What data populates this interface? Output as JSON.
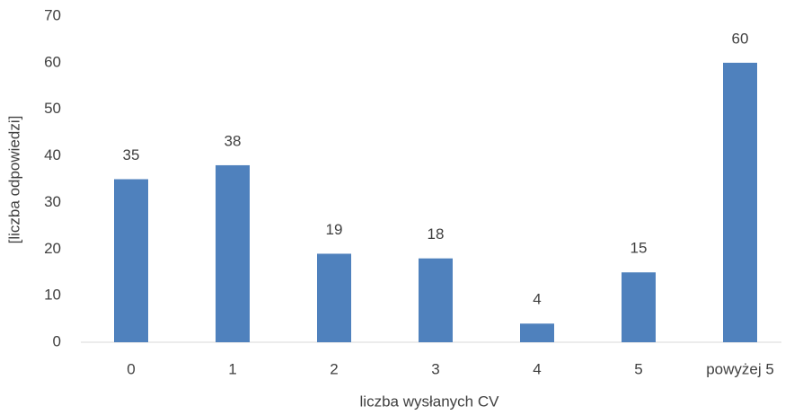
{
  "chart_data": {
    "type": "bar",
    "x_label": "liczba wysłanych CV",
    "y_label": "[liczba odpowiedzi]",
    "categories": [
      "0",
      "1",
      "2",
      "3",
      "4",
      "5",
      "powyżej 5"
    ],
    "values": [
      35,
      38,
      19,
      18,
      4,
      15,
      60
    ],
    "color": "#4f81bd",
    "ylim": [
      0,
      70
    ],
    "yticks": [
      0,
      10,
      20,
      30,
      40,
      50,
      60,
      70
    ],
    "grid": false,
    "data_labels": true
  }
}
